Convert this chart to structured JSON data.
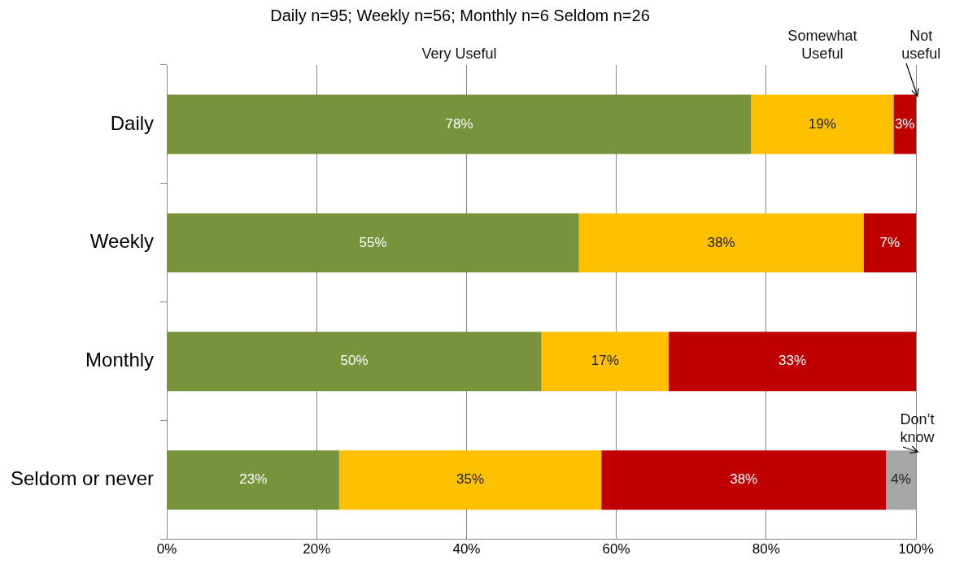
{
  "chart_data": {
    "type": "bar",
    "orientation": "horizontal",
    "stacked": true,
    "title": "Daily n=95; Weekly n=56; Monthly n=6 Seldom n=26",
    "categories": [
      "Daily",
      "Weekly",
      "Monthly",
      "Seldom or never"
    ],
    "series": [
      {
        "name": "Very Useful",
        "color": "#77933c",
        "values": [
          78,
          55,
          50,
          23
        ],
        "value_labels": [
          "78%",
          "55%",
          "50%",
          "23%"
        ]
      },
      {
        "name": "Somewhat Useful",
        "color": "#ffc000",
        "values": [
          19,
          38,
          17,
          35
        ],
        "value_labels": [
          "19%",
          "38%",
          "17%",
          "35%"
        ]
      },
      {
        "name": "Not useful",
        "color": "#c00000",
        "values": [
          3,
          7,
          33,
          38
        ],
        "value_labels": [
          "3%",
          "7%",
          "33%",
          "38%"
        ]
      },
      {
        "name": "Don’t know",
        "color": "#a6a6a6",
        "values": [
          null,
          null,
          null,
          4
        ],
        "value_labels": [
          null,
          null,
          null,
          "4%"
        ]
      }
    ],
    "xlim": [
      0,
      100
    ],
    "xticks": [
      {
        "value": 0,
        "label": "0%"
      },
      {
        "value": 20,
        "label": "20%"
      },
      {
        "value": 40,
        "label": "40%"
      },
      {
        "value": 60,
        "label": "60%"
      },
      {
        "value": 80,
        "label": "80%"
      },
      {
        "value": 100,
        "label": "100%"
      }
    ],
    "grid": "x",
    "legend": false
  }
}
